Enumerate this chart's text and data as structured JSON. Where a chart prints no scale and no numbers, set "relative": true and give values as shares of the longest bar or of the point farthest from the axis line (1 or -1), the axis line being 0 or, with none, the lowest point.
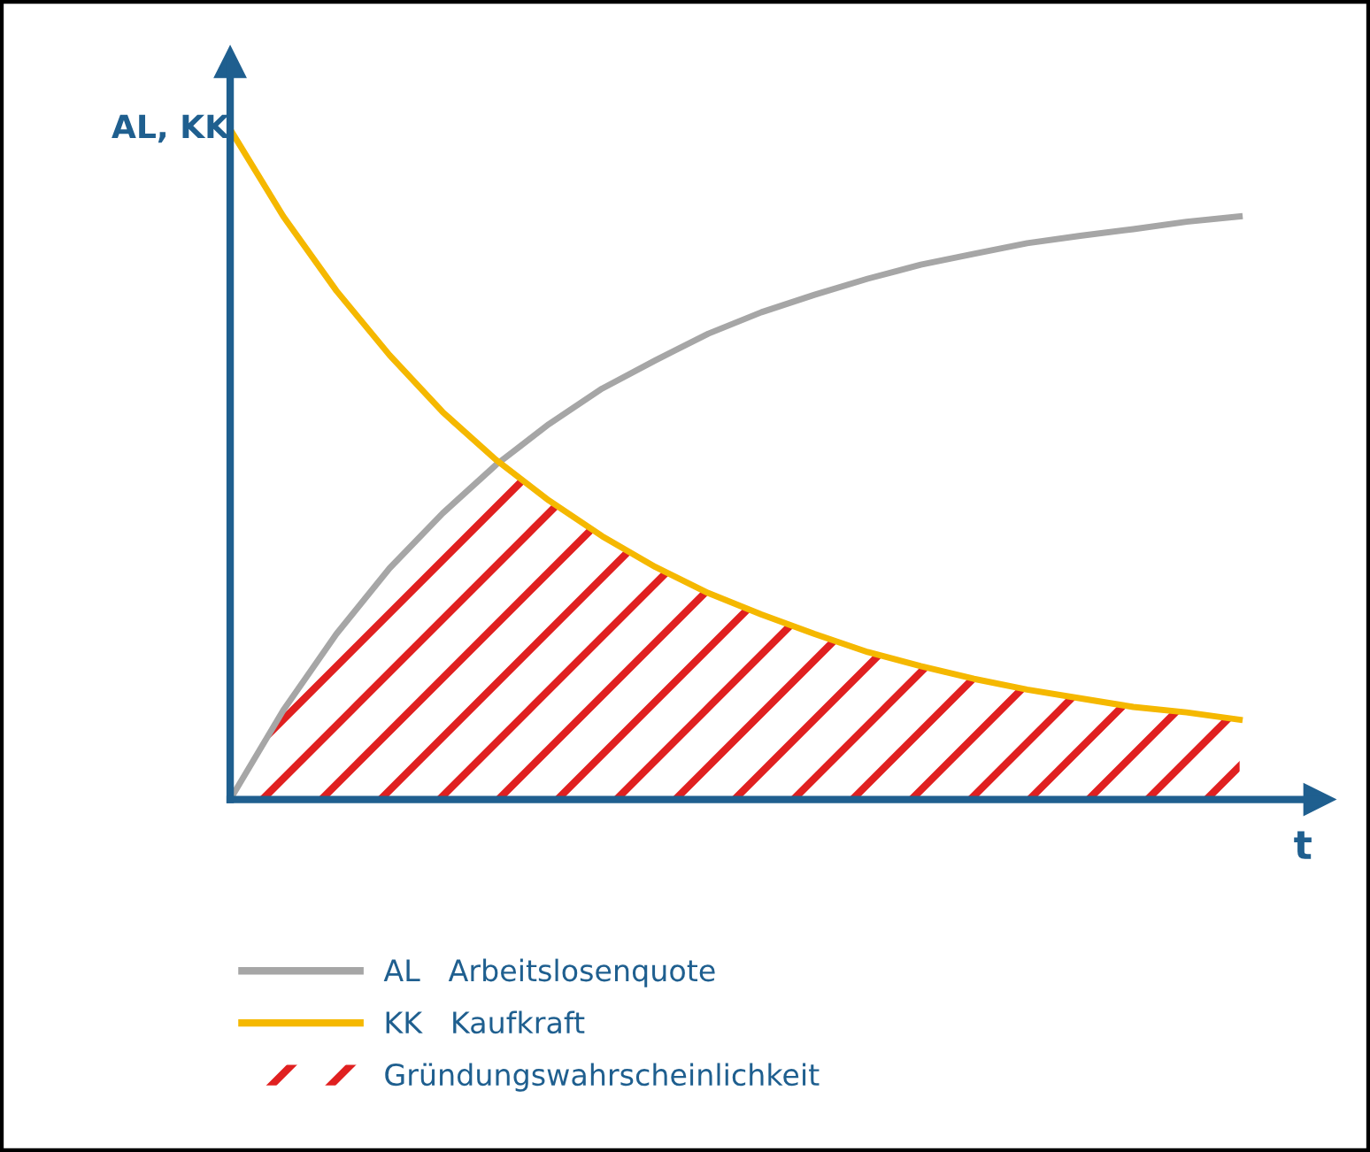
{
  "chart_data": {
    "type": "line",
    "relative": true,
    "xlabel": "t",
    "ylabel": "AL, KK",
    "categories": [
      null,
      null,
      null,
      null,
      null,
      null,
      null,
      null,
      null,
      null,
      null,
      null,
      null,
      null,
      null,
      null,
      null,
      null,
      null,
      null
    ],
    "series": [
      {
        "name": "AL   Arbeitslosenquote",
        "color": "#a6a6a6",
        "values": [
          0,
          0.133,
          0.247,
          0.345,
          0.427,
          0.499,
          0.56,
          0.613,
          0.655,
          0.695,
          0.727,
          0.753,
          0.777,
          0.798,
          0.814,
          0.83,
          0.841,
          0.851,
          0.862,
          0.87
        ]
      },
      {
        "name": "KK   Kaufkraft",
        "color": "#f5b800",
        "values": [
          1.0,
          0.87,
          0.759,
          0.663,
          0.578,
          0.507,
          0.446,
          0.393,
          0.347,
          0.308,
          0.276,
          0.247,
          0.22,
          0.199,
          0.18,
          0.164,
          0.151,
          0.138,
          0.13,
          0.119
        ]
      },
      {
        "name": "Gründungswahrscheinlichkeit",
        "type": "area",
        "color": "#e02020",
        "values": [
          0,
          0.133,
          0.247,
          0.345,
          0.427,
          0.499,
          0.446,
          0.393,
          0.347,
          0.308,
          0.276,
          0.247,
          0.22,
          0.199,
          0.18,
          0.164,
          0.151,
          0.138,
          0.13,
          0.119
        ]
      }
    ],
    "legend": "bottom",
    "marker": "none",
    "line_style": "solid"
  }
}
